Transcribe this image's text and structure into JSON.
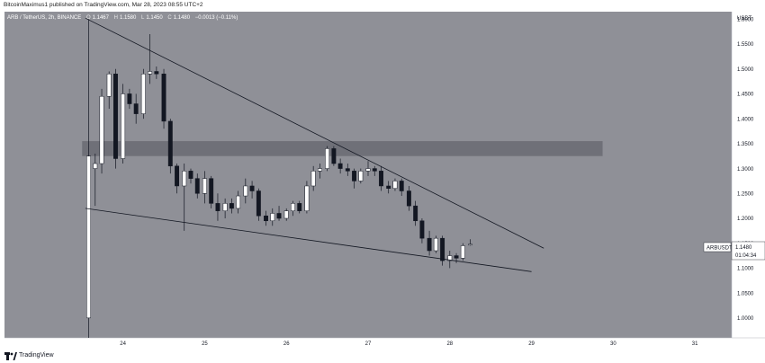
{
  "header": {
    "published_line": "BitcoinMaximus1 published on TradingView.com, Mar 28, 2023 08:55 UTC+2"
  },
  "footer": {
    "brand": "TradingView",
    "icon": "tradingview-logo-icon"
  },
  "colors": {
    "chart_bg": "#8f9097",
    "axis_bg": "#ffffff",
    "up_candle": "#ffffff",
    "down_candle": "#131722",
    "wick": "#131722",
    "zone": "#6a6b72",
    "trendline": "#131722"
  },
  "chart_data": {
    "type": "candlestick",
    "symbol_line": {
      "symbol": "ARB / TetherUS, 2h, BINANCE",
      "O": "1.1467",
      "H": "1.1580",
      "L": "1.1450",
      "C": "1.1480",
      "change": "−0.0013 (−0.11%)"
    },
    "currency": "USDT",
    "yticks": [
      "1.6000",
      "1.5500",
      "1.5000",
      "1.4500",
      "1.4000",
      "1.3500",
      "1.3000",
      "1.2500",
      "1.2000",
      "1.1500",
      "1.1000",
      "1.0500",
      "1.0000"
    ],
    "xticks": [
      "24",
      "25",
      "26",
      "27",
      "28",
      "29",
      "30",
      "31"
    ],
    "ylim": [
      0.96,
      1.615
    ],
    "xlim": [
      22.55,
      31.45
    ],
    "price_label": {
      "symbol": "ARBUSDT",
      "price": "1.1480",
      "countdown": "01:04:34"
    },
    "zone": {
      "low": 1.325,
      "high": 1.355,
      "x_start": 23.5,
      "x_end": 29.87
    },
    "trendlines": [
      {
        "from": [
          23.54,
          1.602
        ],
        "to": [
          29.15,
          1.14
        ]
      },
      {
        "from": [
          23.54,
          1.22
        ],
        "to": [
          29.0,
          1.093
        ]
      }
    ],
    "candles": [
      {
        "t": 23.58,
        "o": 1.0,
        "h": 1.6,
        "l": 0.96,
        "c": 1.325
      },
      {
        "t": 23.66,
        "o": 1.3,
        "h": 1.33,
        "l": 1.225,
        "c": 1.31
      },
      {
        "t": 23.74,
        "o": 1.31,
        "h": 1.46,
        "l": 1.29,
        "c": 1.445
      },
      {
        "t": 23.83,
        "o": 1.445,
        "h": 1.495,
        "l": 1.42,
        "c": 1.49
      },
      {
        "t": 23.91,
        "o": 1.49,
        "h": 1.5,
        "l": 1.3,
        "c": 1.32
      },
      {
        "t": 24.0,
        "o": 1.32,
        "h": 1.47,
        "l": 1.31,
        "c": 1.45
      },
      {
        "t": 24.08,
        "o": 1.45,
        "h": 1.46,
        "l": 1.42,
        "c": 1.43
      },
      {
        "t": 24.16,
        "o": 1.43,
        "h": 1.45,
        "l": 1.39,
        "c": 1.41
      },
      {
        "t": 24.25,
        "o": 1.41,
        "h": 1.5,
        "l": 1.4,
        "c": 1.49
      },
      {
        "t": 24.33,
        "o": 1.49,
        "h": 1.57,
        "l": 1.47,
        "c": 1.495
      },
      {
        "t": 24.41,
        "o": 1.495,
        "h": 1.505,
        "l": 1.48,
        "c": 1.49
      },
      {
        "t": 24.5,
        "o": 1.49,
        "h": 1.5,
        "l": 1.38,
        "c": 1.395
      },
      {
        "t": 24.58,
        "o": 1.395,
        "h": 1.4,
        "l": 1.29,
        "c": 1.305
      },
      {
        "t": 24.66,
        "o": 1.305,
        "h": 1.31,
        "l": 1.25,
        "c": 1.265
      },
      {
        "t": 24.75,
        "o": 1.265,
        "h": 1.31,
        "l": 1.175,
        "c": 1.295
      },
      {
        "t": 24.83,
        "o": 1.295,
        "h": 1.3,
        "l": 1.27,
        "c": 1.28
      },
      {
        "t": 24.91,
        "o": 1.28,
        "h": 1.29,
        "l": 1.24,
        "c": 1.25
      },
      {
        "t": 25.0,
        "o": 1.25,
        "h": 1.295,
        "l": 1.23,
        "c": 1.28
      },
      {
        "t": 25.08,
        "o": 1.28,
        "h": 1.285,
        "l": 1.22,
        "c": 1.23
      },
      {
        "t": 25.16,
        "o": 1.23,
        "h": 1.25,
        "l": 1.195,
        "c": 1.215
      },
      {
        "t": 25.25,
        "o": 1.215,
        "h": 1.24,
        "l": 1.2,
        "c": 1.23
      },
      {
        "t": 25.33,
        "o": 1.23,
        "h": 1.24,
        "l": 1.21,
        "c": 1.22
      },
      {
        "t": 25.41,
        "o": 1.22,
        "h": 1.255,
        "l": 1.21,
        "c": 1.245
      },
      {
        "t": 25.5,
        "o": 1.245,
        "h": 1.28,
        "l": 1.23,
        "c": 1.265
      },
      {
        "t": 25.58,
        "o": 1.265,
        "h": 1.275,
        "l": 1.24,
        "c": 1.255
      },
      {
        "t": 25.66,
        "o": 1.255,
        "h": 1.26,
        "l": 1.195,
        "c": 1.205
      },
      {
        "t": 25.75,
        "o": 1.205,
        "h": 1.215,
        "l": 1.185,
        "c": 1.195
      },
      {
        "t": 25.83,
        "o": 1.195,
        "h": 1.22,
        "l": 1.185,
        "c": 1.21
      },
      {
        "t": 25.91,
        "o": 1.21,
        "h": 1.225,
        "l": 1.195,
        "c": 1.2
      },
      {
        "t": 26.0,
        "o": 1.2,
        "h": 1.22,
        "l": 1.195,
        "c": 1.215
      },
      {
        "t": 26.08,
        "o": 1.215,
        "h": 1.235,
        "l": 1.205,
        "c": 1.23
      },
      {
        "t": 26.16,
        "o": 1.23,
        "h": 1.235,
        "l": 1.21,
        "c": 1.215
      },
      {
        "t": 26.25,
        "o": 1.215,
        "h": 1.275,
        "l": 1.21,
        "c": 1.265
      },
      {
        "t": 26.33,
        "o": 1.265,
        "h": 1.305,
        "l": 1.255,
        "c": 1.295
      },
      {
        "t": 26.41,
        "o": 1.295,
        "h": 1.31,
        "l": 1.28,
        "c": 1.3
      },
      {
        "t": 26.5,
        "o": 1.3,
        "h": 1.345,
        "l": 1.295,
        "c": 1.34
      },
      {
        "t": 26.58,
        "o": 1.34,
        "h": 1.345,
        "l": 1.305,
        "c": 1.31
      },
      {
        "t": 26.66,
        "o": 1.31,
        "h": 1.32,
        "l": 1.29,
        "c": 1.3
      },
      {
        "t": 26.75,
        "o": 1.3,
        "h": 1.31,
        "l": 1.285,
        "c": 1.295
      },
      {
        "t": 26.83,
        "o": 1.295,
        "h": 1.3,
        "l": 1.26,
        "c": 1.275
      },
      {
        "t": 26.91,
        "o": 1.275,
        "h": 1.3,
        "l": 1.27,
        "c": 1.295
      },
      {
        "t": 27.0,
        "o": 1.295,
        "h": 1.315,
        "l": 1.285,
        "c": 1.3
      },
      {
        "t": 27.08,
        "o": 1.3,
        "h": 1.305,
        "l": 1.285,
        "c": 1.295
      },
      {
        "t": 27.16,
        "o": 1.295,
        "h": 1.305,
        "l": 1.255,
        "c": 1.265
      },
      {
        "t": 27.25,
        "o": 1.265,
        "h": 1.275,
        "l": 1.25,
        "c": 1.26
      },
      {
        "t": 27.33,
        "o": 1.26,
        "h": 1.28,
        "l": 1.255,
        "c": 1.275
      },
      {
        "t": 27.41,
        "o": 1.275,
        "h": 1.28,
        "l": 1.245,
        "c": 1.255
      },
      {
        "t": 27.5,
        "o": 1.255,
        "h": 1.265,
        "l": 1.215,
        "c": 1.225
      },
      {
        "t": 27.58,
        "o": 1.225,
        "h": 1.235,
        "l": 1.185,
        "c": 1.195
      },
      {
        "t": 27.66,
        "o": 1.195,
        "h": 1.2,
        "l": 1.15,
        "c": 1.16
      },
      {
        "t": 27.75,
        "o": 1.16,
        "h": 1.175,
        "l": 1.125,
        "c": 1.135
      },
      {
        "t": 27.83,
        "o": 1.135,
        "h": 1.165,
        "l": 1.13,
        "c": 1.16
      },
      {
        "t": 27.91,
        "o": 1.16,
        "h": 1.165,
        "l": 1.105,
        "c": 1.115
      },
      {
        "t": 28.0,
        "o": 1.115,
        "h": 1.135,
        "l": 1.1,
        "c": 1.125
      },
      {
        "t": 28.08,
        "o": 1.125,
        "h": 1.13,
        "l": 1.11,
        "c": 1.12
      },
      {
        "t": 28.16,
        "o": 1.12,
        "h": 1.15,
        "l": 1.115,
        "c": 1.145
      },
      {
        "t": 28.25,
        "o": 1.147,
        "h": 1.158,
        "l": 1.145,
        "c": 1.148
      }
    ]
  }
}
